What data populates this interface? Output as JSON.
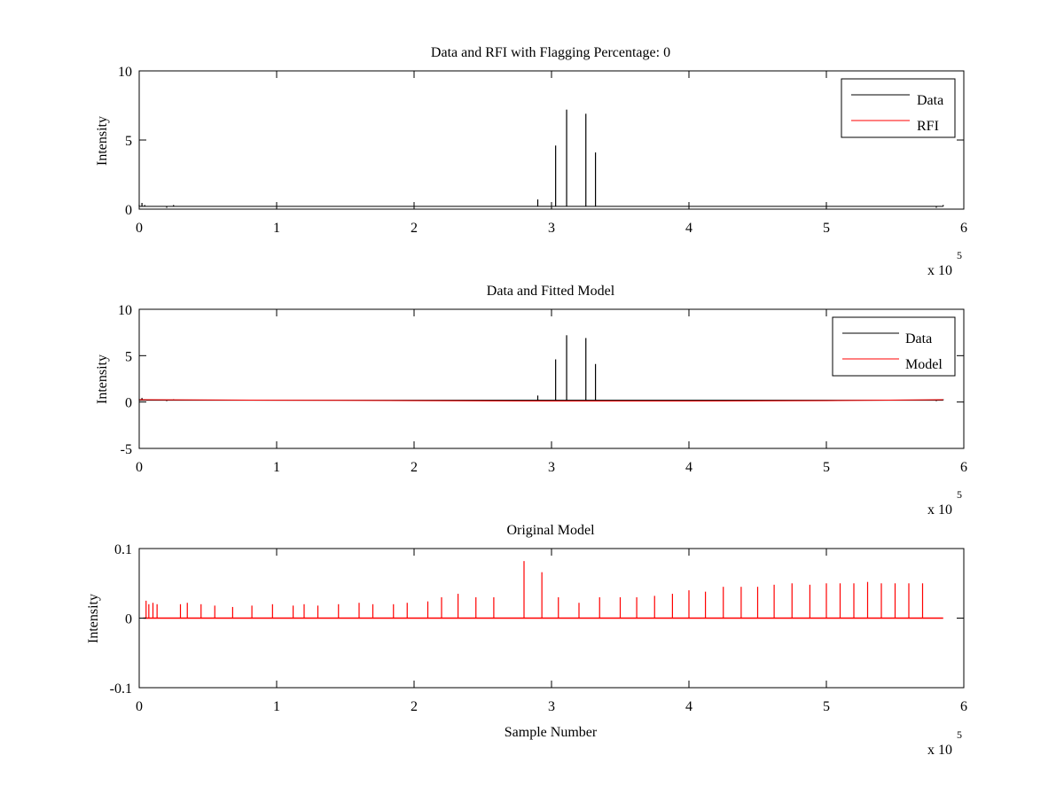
{
  "figure": {
    "background": "#ffffff",
    "colors": {
      "data": "#000000",
      "rfi": "#ff0000",
      "model": "#ff0000",
      "original_model": "#ff0000",
      "axes": "#000000"
    }
  },
  "chart_data": [
    {
      "type": "line",
      "title": "Data and RFI with Flagging Percentage: 0",
      "xlabel": "",
      "ylabel": "Intensity",
      "xlim": [
        0,
        6
      ],
      "ylim": [
        0,
        10
      ],
      "xticks": [
        "0",
        "1",
        "2",
        "3",
        "4",
        "5",
        "6"
      ],
      "yticks": [
        "0",
        "5",
        "10"
      ],
      "x_multiplier": {
        "base": "x 10",
        "exponent": "5"
      },
      "grid": false,
      "legend": {
        "position": "top-right",
        "entries": [
          "Data",
          "RFI"
        ]
      },
      "series": [
        {
          "name": "Data",
          "color": "#000000",
          "baseline": 0.2,
          "x": [
            0,
            0.02,
            0.04,
            0.1,
            0.2,
            0.25,
            1.0,
            2.9,
            3.03,
            3.11,
            3.25,
            3.32,
            5.7,
            5.8,
            5.85
          ],
          "y": [
            0.3,
            0.45,
            0.3,
            0.2,
            0.1,
            0.3,
            0.2,
            0.7,
            4.6,
            7.2,
            6.9,
            4.1,
            0.2,
            0.1,
            0.3
          ]
        },
        {
          "name": "RFI",
          "color": "#ff0000",
          "x": [],
          "y": []
        }
      ]
    },
    {
      "type": "line",
      "title": "Data and Fitted Model",
      "xlabel": "",
      "ylabel": "Intensity",
      "xlim": [
        0,
        6
      ],
      "ylim": [
        -5,
        10
      ],
      "xticks": [
        "0",
        "1",
        "2",
        "3",
        "4",
        "5",
        "6"
      ],
      "yticks": [
        "-5",
        "0",
        "5",
        "10"
      ],
      "x_multiplier": {
        "base": "x 10",
        "exponent": "5"
      },
      "grid": false,
      "legend": {
        "position": "top-right",
        "entries": [
          "Data",
          "Model"
        ]
      },
      "series": [
        {
          "name": "Data",
          "color": "#000000",
          "baseline": 0.2,
          "x": [
            0,
            0.02,
            0.04,
            0.1,
            0.2,
            0.25,
            1.0,
            2.9,
            3.03,
            3.11,
            3.25,
            3.32,
            5.7,
            5.8,
            5.85
          ],
          "y": [
            0.3,
            0.45,
            0.3,
            0.2,
            0.1,
            0.3,
            0.2,
            0.7,
            4.6,
            7.2,
            6.9,
            4.1,
            0.2,
            0.1,
            0.3
          ]
        },
        {
          "name": "Model",
          "color": "#ff0000",
          "x": [
            0,
            1,
            2,
            3,
            4,
            5,
            5.85
          ],
          "y": [
            0.25,
            0.2,
            0.15,
            0.1,
            0.1,
            0.15,
            0.25
          ]
        }
      ]
    },
    {
      "type": "line",
      "title": "Original Model",
      "xlabel": "Sample Number",
      "ylabel": "Intensity",
      "xlim": [
        0,
        6
      ],
      "ylim": [
        -0.1,
        0.1
      ],
      "xticks": [
        "0",
        "1",
        "2",
        "3",
        "4",
        "5",
        "6"
      ],
      "yticks": [
        "-0.1",
        "0",
        "0.1"
      ],
      "x_multiplier": {
        "base": "x 10",
        "exponent": "5"
      },
      "grid": false,
      "legend": null,
      "series": [
        {
          "name": "",
          "color": "#ff0000",
          "x": [
            0.05,
            0.07,
            0.1,
            0.13,
            0.3,
            0.35,
            0.45,
            0.55,
            0.68,
            0.82,
            0.97,
            1.12,
            1.2,
            1.3,
            1.45,
            1.6,
            1.7,
            1.85,
            1.95,
            2.1,
            2.2,
            2.32,
            2.45,
            2.58,
            2.8,
            2.93,
            3.05,
            3.2,
            3.35,
            3.5,
            3.62,
            3.75,
            3.88,
            4.0,
            4.12,
            4.25,
            4.38,
            4.5,
            4.62,
            4.75,
            4.88,
            5.0,
            5.1,
            5.2,
            5.3,
            5.4,
            5.5,
            5.6,
            5.7
          ],
          "y": [
            0.025,
            0.02,
            0.022,
            0.02,
            0.02,
            0.022,
            0.02,
            0.018,
            0.016,
            0.018,
            0.02,
            0.018,
            0.02,
            0.018,
            0.02,
            0.022,
            0.02,
            0.02,
            0.022,
            0.024,
            0.03,
            0.035,
            0.03,
            0.03,
            0.082,
            0.066,
            0.03,
            0.022,
            0.03,
            0.03,
            0.03,
            0.032,
            0.035,
            0.04,
            0.038,
            0.045,
            0.045,
            0.045,
            0.048,
            0.05,
            0.048,
            0.05,
            0.05,
            0.05,
            0.052,
            0.05,
            0.05,
            0.05,
            0.05
          ]
        }
      ]
    }
  ]
}
